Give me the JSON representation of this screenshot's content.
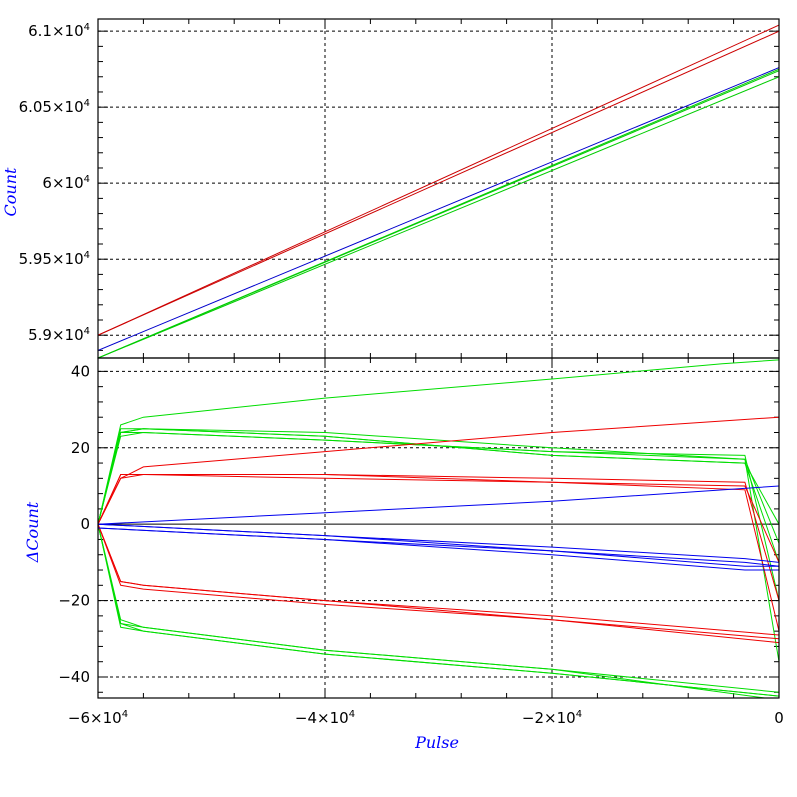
{
  "chart_data": [
    {
      "type": "line",
      "panel": "top",
      "ylabel": "Count",
      "xlim": [
        -60000,
        0
      ],
      "ylim": [
        58850,
        61080
      ],
      "yticks": [
        {
          "v": 59000,
          "m": "5.9",
          "e": "4"
        },
        {
          "v": 59500,
          "m": "5.95",
          "e": "4"
        },
        {
          "v": 60000,
          "m": "6",
          "e": "4"
        },
        {
          "v": 60500,
          "m": "6.05",
          "e": "4"
        },
        {
          "v": 61000,
          "m": "6.1",
          "e": "4"
        }
      ],
      "grid": true,
      "series": [
        {
          "color": "#cc0000",
          "x": [
            -60000,
            0
          ],
          "y": [
            59000,
            61040
          ]
        },
        {
          "color": "#cc0000",
          "x": [
            -60000,
            0
          ],
          "y": [
            59000,
            61000
          ]
        },
        {
          "color": "#0000cc",
          "x": [
            -60000,
            0
          ],
          "y": [
            58900,
            60760
          ]
        },
        {
          "color": "#00cc00",
          "x": [
            -60000,
            0
          ],
          "y": [
            58850,
            60750
          ]
        },
        {
          "color": "#00cc00",
          "x": [
            -60000,
            0
          ],
          "y": [
            58850,
            60700
          ]
        },
        {
          "color": "#00cc00",
          "x": [
            -60000,
            0
          ],
          "y": [
            58850,
            60740
          ]
        }
      ]
    },
    {
      "type": "line",
      "panel": "bottom",
      "xlabel": "Pulse",
      "ylabel": "ΔCount",
      "xlim": [
        -60000,
        0
      ],
      "ylim": [
        -45.5,
        43.5
      ],
      "xticks": [
        {
          "v": -60000,
          "m": "−6",
          "e": "4"
        },
        {
          "v": -40000,
          "m": "−4",
          "e": "4"
        },
        {
          "v": -20000,
          "m": "−2",
          "e": "4"
        },
        {
          "v": 0,
          "m": "0",
          "e": ""
        }
      ],
      "yticks": [
        {
          "v": -40,
          "m": "−40",
          "e": ""
        },
        {
          "v": -20,
          "m": "−20",
          "e": ""
        },
        {
          "v": 0,
          "m": "0",
          "e": ""
        },
        {
          "v": 20,
          "m": "20",
          "e": ""
        },
        {
          "v": 40,
          "m": "40",
          "e": ""
        }
      ],
      "grid": true,
      "series": [
        {
          "color": "#00dd00",
          "x": [
            -60000,
            -58000,
            -56000,
            -40000,
            -20000,
            -5000,
            0
          ],
          "y": [
            0,
            26,
            28,
            33,
            38,
            42,
            43
          ]
        },
        {
          "color": "#00dd00",
          "x": [
            -60000,
            -58000,
            -56000,
            -40000,
            -20000,
            -3000,
            0
          ],
          "y": [
            0,
            24,
            25,
            23,
            18,
            16,
            0
          ]
        },
        {
          "color": "#00dd00",
          "x": [
            -60000,
            -58000,
            -56000,
            -40000,
            -20000,
            -3000,
            0
          ],
          "y": [
            0,
            23,
            24,
            22,
            19,
            17,
            -5
          ]
        },
        {
          "color": "#00dd00",
          "x": [
            -60000,
            -58000,
            -56000,
            -40000,
            -20000,
            -3000,
            0
          ],
          "y": [
            0,
            25,
            25,
            23,
            18,
            16,
            -10
          ]
        },
        {
          "color": "#00dd00",
          "x": [
            -60000,
            -58000,
            -56000,
            -40000,
            -20000,
            -3000,
            0
          ],
          "y": [
            0,
            24,
            24,
            22,
            19,
            18,
            -20
          ]
        },
        {
          "color": "#00dd00",
          "x": [
            -60000,
            -58000,
            -56000,
            -40000,
            -20000,
            -3000,
            0
          ],
          "y": [
            0,
            24,
            25,
            24,
            20,
            17,
            -36
          ]
        },
        {
          "color": "#00dd00",
          "x": [
            -60000,
            -58000,
            -56000,
            -40000,
            -20000,
            0
          ],
          "y": [
            0,
            -25,
            -27,
            -33,
            -38,
            -44
          ]
        },
        {
          "color": "#00dd00",
          "x": [
            -60000,
            -58000,
            -56000,
            -40000,
            -20000,
            0
          ],
          "y": [
            0,
            -26,
            -28,
            -34,
            -39,
            -45
          ]
        },
        {
          "color": "#00dd00",
          "x": [
            -60000,
            -58000,
            -56000,
            -40000,
            -20000,
            0
          ],
          "y": [
            0,
            -26,
            -27,
            -33,
            -38,
            -46
          ]
        },
        {
          "color": "#00dd00",
          "x": [
            -60000,
            -58000,
            -56000,
            -40000,
            -20000,
            0
          ],
          "y": [
            0,
            -27,
            -28,
            -34,
            -39,
            -45
          ]
        },
        {
          "color": "#ee0000",
          "x": [
            -60000,
            -58000,
            -56000,
            -40000,
            -20000,
            -5000,
            0
          ],
          "y": [
            0,
            12,
            15,
            19,
            24,
            27,
            28
          ]
        },
        {
          "color": "#ee0000",
          "x": [
            -60000,
            -58000,
            -56000,
            -40000,
            -20000,
            -3000,
            0
          ],
          "y": [
            0,
            13,
            13,
            12,
            11,
            10,
            -10
          ]
        },
        {
          "color": "#ee0000",
          "x": [
            -60000,
            -58000,
            -56000,
            -40000,
            -20000,
            -3000,
            0
          ],
          "y": [
            0,
            12,
            13,
            13,
            12,
            11,
            -20
          ]
        },
        {
          "color": "#ee0000",
          "x": [
            -60000,
            -58000,
            -56000,
            -40000,
            -20000,
            -3000,
            0
          ],
          "y": [
            0,
            13,
            13,
            13,
            11,
            9,
            -28
          ]
        },
        {
          "color": "#ee0000",
          "x": [
            -60000,
            -58000,
            -56000,
            -40000,
            -20000,
            0
          ],
          "y": [
            0,
            -15,
            -16,
            -20,
            -25,
            -30
          ]
        },
        {
          "color": "#ee0000",
          "x": [
            -60000,
            -58000,
            -56000,
            -40000,
            -20000,
            0
          ],
          "y": [
            0,
            -15,
            -16,
            -20,
            -24,
            -29
          ]
        },
        {
          "color": "#ee0000",
          "x": [
            -60000,
            -58000,
            -56000,
            -40000,
            -20000,
            0
          ],
          "y": [
            0,
            -16,
            -17,
            -21,
            -25,
            -31
          ]
        },
        {
          "color": "#0000ee",
          "x": [
            -60000,
            -40000,
            -20000,
            0
          ],
          "y": [
            0,
            3,
            6,
            10
          ]
        },
        {
          "color": "#0000ee",
          "x": [
            -60000,
            -40000,
            -20000,
            -3000,
            0
          ],
          "y": [
            0,
            -3,
            -7,
            -11,
            -11
          ]
        },
        {
          "color": "#0000ee",
          "x": [
            -60000,
            -40000,
            -20000,
            -3000,
            0
          ],
          "y": [
            -1,
            -4,
            -8,
            -12,
            -12
          ]
        },
        {
          "color": "#0000ee",
          "x": [
            -60000,
            -40000,
            -20000,
            -3000,
            0
          ],
          "y": [
            -1,
            -4,
            -7,
            -10,
            -11
          ]
        },
        {
          "color": "#0000ee",
          "x": [
            -60000,
            -40000,
            -20000,
            -3000,
            0
          ],
          "y": [
            0,
            -3,
            -6,
            -9,
            -10
          ]
        }
      ]
    }
  ]
}
